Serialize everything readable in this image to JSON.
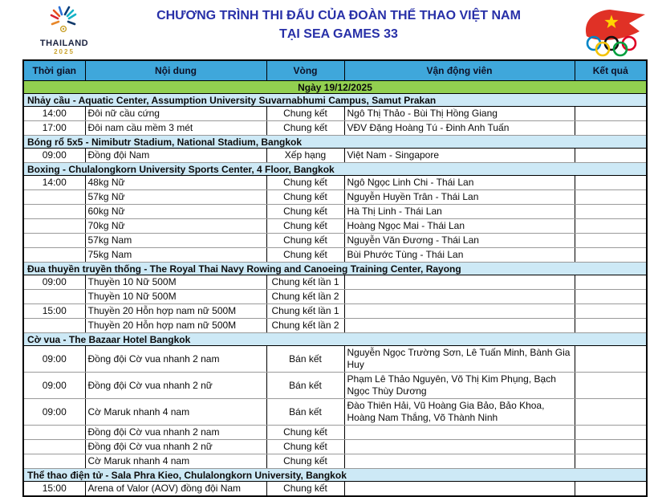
{
  "header": {
    "title_line1": "CHƯƠNG TRÌNH THI ĐẤU CỦA ĐOÀN THỂ THAO VIỆT NAM",
    "title_line2": "TẠI SEA GAMES 33",
    "left_logo": {
      "icon": "thailand-2025-games-emblem",
      "name": "THAILAND",
      "year": "2025"
    },
    "right_logo": {
      "icon": "vietnam-flag-olympic-rings"
    }
  },
  "colors": {
    "title_blue": "#2830a8",
    "header_row_blue": "#3fa7db",
    "date_row_green": "#92d050",
    "section_row_blue": "#cde9f6",
    "flag_red": "#da251d",
    "star_yellow": "#ffde00",
    "ring_blue": "#0085c7",
    "ring_black": "#111111",
    "ring_red": "#df0024",
    "ring_yellow": "#f4c300",
    "ring_green": "#009f3d"
  },
  "table": {
    "columns": [
      "Thời gian",
      "Nội dung",
      "Vòng",
      "Vận động viên",
      "Kết quả"
    ],
    "date_header": "Ngày 19/12/2025",
    "sections": [
      {
        "title": "Nhảy cầu - Aquatic Center, Assumption University Suvarnabhumi Campus, Samut Prakan",
        "rows": [
          {
            "time": "14:00",
            "event": "Đôi nữ cầu cứng",
            "round": "Chung kết",
            "athletes": "Ngô Thị Thảo - Bùi Thị Hồng Giang",
            "result": ""
          },
          {
            "time": "17:00",
            "event": "Đôi nam cầu mềm 3 mét",
            "round": "Chung kết",
            "athletes": "VĐV Đặng Hoàng Tú - Đinh Anh Tuấn",
            "result": ""
          }
        ]
      },
      {
        "title": "Bóng rổ 5x5 - Nimibutr Stadium, National Stadium, Bangkok",
        "rows": [
          {
            "time": "09:00",
            "event": "Đồng đội Nam",
            "round": "Xếp hạng",
            "athletes": "Việt Nam - Singapore",
            "result": ""
          }
        ]
      },
      {
        "title": "Boxing - Chulalongkorn University Sports Center, 4 Floor, Bangkok",
        "rows": [
          {
            "time": "14:00",
            "event": "48kg Nữ",
            "round": "Chung kết",
            "athletes": "Ngô Ngọc Linh Chi - Thái Lan",
            "result": ""
          },
          {
            "time": "",
            "event": "57kg Nữ",
            "round": "Chung kết",
            "athletes": "Nguyễn Huyền Trân - Thái Lan",
            "result": ""
          },
          {
            "time": "",
            "event": "60kg Nữ",
            "round": "Chung kết",
            "athletes": "Hà Thị Linh - Thái Lan",
            "result": ""
          },
          {
            "time": "",
            "event": "70kg Nữ",
            "round": "Chung kết",
            "athletes": "Hoàng Ngọc Mai - Thái Lan",
            "result": ""
          },
          {
            "time": "",
            "event": "57kg Nam",
            "round": "Chung kết",
            "athletes": "Nguyễn Văn Đương - Thái Lan",
            "result": ""
          },
          {
            "time": "",
            "event": "75kg Nam",
            "round": "Chung kết",
            "athletes": "Bùi Phước Tùng - Thái Lan",
            "result": ""
          }
        ]
      },
      {
        "title": "Đua thuyền truyền thống - The Royal Thai Navy Rowing and Canoeing Training Center, Rayong",
        "rows": [
          {
            "time": "09:00",
            "event": "Thuyền 10 Nữ 500M",
            "round": "Chung kết lần 1",
            "athletes": "",
            "result": ""
          },
          {
            "time": "",
            "event": "Thuyền 10 Nữ 500M",
            "round": "Chung kết lần 2",
            "athletes": "",
            "result": ""
          },
          {
            "time": "15:00",
            "event": "Thuyền 20 Hỗn hợp nam nữ 500M",
            "round": "Chung kết lần 1",
            "athletes": "",
            "result": ""
          },
          {
            "time": "",
            "event": "Thuyền 20 Hỗn hợp nam nữ 500M",
            "round": "Chung kết lần 2",
            "athletes": "",
            "result": ""
          }
        ]
      },
      {
        "title": "Cờ vua - The Bazaar Hotel Bangkok",
        "rows": [
          {
            "time": "09:00",
            "event": "Đồng đội Cờ vua nhanh 2 nam",
            "round": "Bán kết",
            "athletes": "Nguyễn Ngọc Trường Sơn, Lê Tuấn Minh, Bành Gia Huy",
            "result": ""
          },
          {
            "time": "09:00",
            "event": "Đồng đội Cờ vua nhanh 2 nữ",
            "round": "Bán kết",
            "athletes": "Phạm Lê Thảo Nguyên, Võ Thị Kim Phụng, Bạch Ngọc Thùy Dương",
            "result": ""
          },
          {
            "time": "09:00",
            "event": "Cờ Maruk nhanh 4 nam",
            "round": "Bán kết",
            "athletes": "Đào Thiên Hải, Vũ Hoàng Gia Bảo, Bảo Khoa, Hoàng Nam Thắng, Võ Thành Ninh",
            "result": ""
          },
          {
            "time": "",
            "event": "Đồng đội Cờ vua nhanh 2 nam",
            "round": "Chung kết",
            "athletes": "",
            "result": ""
          },
          {
            "time": "",
            "event": "Đồng đội Cờ vua nhanh 2 nữ",
            "round": "Chung kết",
            "athletes": "",
            "result": ""
          },
          {
            "time": "",
            "event": "Cờ Maruk nhanh 4 nam",
            "round": "Chung kết",
            "athletes": "",
            "result": ""
          }
        ]
      },
      {
        "title": "Thể thao điện tử - Sala Phra Kieo, Chulalongkorn University, Bangkok",
        "rows": [
          {
            "time": "15:00",
            "event": "Arena of Valor (AOV) đồng đội Nam",
            "round": "Chung kết",
            "athletes": "",
            "result": ""
          }
        ]
      }
    ]
  }
}
